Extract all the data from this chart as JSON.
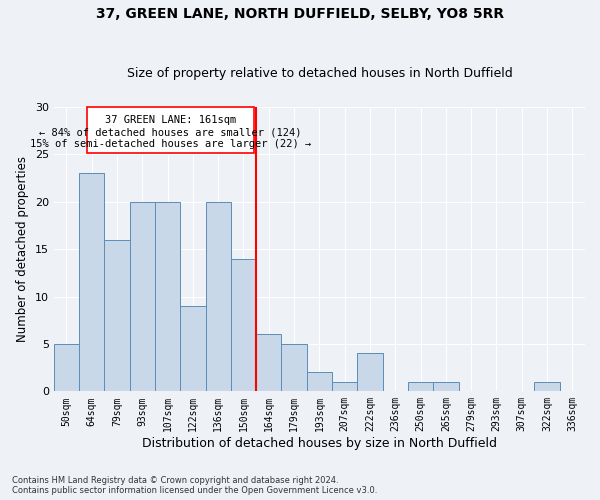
{
  "title1": "37, GREEN LANE, NORTH DUFFIELD, SELBY, YO8 5RR",
  "title2": "Size of property relative to detached houses in North Duffield",
  "xlabel": "Distribution of detached houses by size in North Duffield",
  "ylabel": "Number of detached properties",
  "footnote": "Contains HM Land Registry data © Crown copyright and database right 2024.\nContains public sector information licensed under the Open Government Licence v3.0.",
  "categories": [
    "50sqm",
    "64sqm",
    "79sqm",
    "93sqm",
    "107sqm",
    "122sqm",
    "136sqm",
    "150sqm",
    "164sqm",
    "179sqm",
    "193sqm",
    "207sqm",
    "222sqm",
    "236sqm",
    "250sqm",
    "265sqm",
    "279sqm",
    "293sqm",
    "307sqm",
    "322sqm",
    "336sqm"
  ],
  "values": [
    5,
    23,
    16,
    20,
    20,
    9,
    20,
    14,
    6,
    5,
    2,
    1,
    4,
    0,
    1,
    1,
    0,
    0,
    0,
    1,
    0
  ],
  "bar_color": "#c8d8e8",
  "bar_edge_color": "#5b8db8",
  "vline_pos": 7.5,
  "vline_color": "red",
  "annotation_text_line1": "37 GREEN LANE: 161sqm",
  "annotation_text_line2": "← 84% of detached houses are smaller (124)",
  "annotation_text_line3": "15% of semi-detached houses are larger (22) →",
  "annotation_box_color": "white",
  "annotation_box_edge_color": "red",
  "ylim": [
    0,
    30
  ],
  "yticks": [
    0,
    5,
    10,
    15,
    20,
    25,
    30
  ],
  "bg_color": "#eef2f7",
  "grid_color": "#ffffff",
  "title1_fontsize": 10,
  "title2_fontsize": 9,
  "xlabel_fontsize": 9,
  "ylabel_fontsize": 8.5
}
